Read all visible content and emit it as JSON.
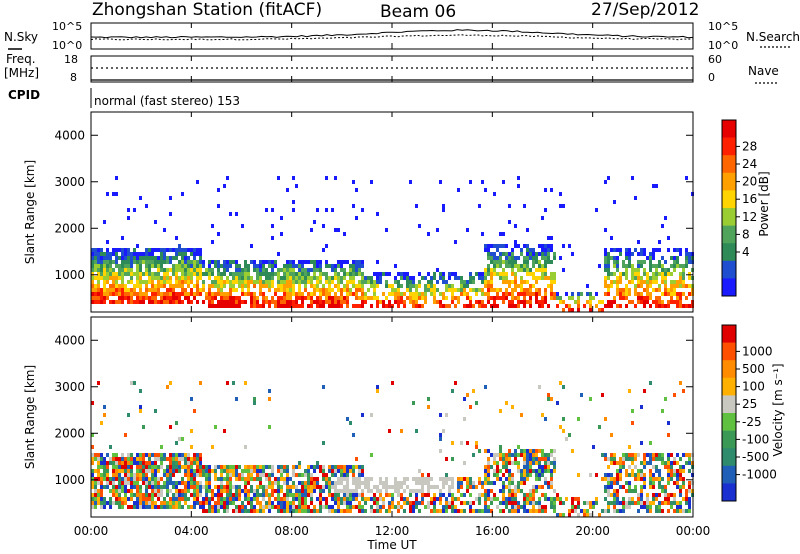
{
  "header": {
    "station_title": "Zhongshan Station (fitACF)",
    "beam_label": "Beam 06",
    "date_label": "27/Sep/2012"
  },
  "top_panels": {
    "nsky_label": "N.Sky",
    "nsearch_label": "N.Search",
    "nsky_ticks": [
      "10^5",
      "10^0"
    ],
    "nsky_right_ticks": [
      "10^5",
      "10^0"
    ],
    "freq_label": "Freq.",
    "freq_unit": "[MHz]",
    "freq_ticks": [
      "18",
      "8"
    ],
    "nave_label": "Nave",
    "nave_ticks": [
      "60",
      "0"
    ],
    "cpid_label": "CPID",
    "cpid_value": "normal (fast stereo) 153"
  },
  "chart_data": [
    {
      "type": "heatmap",
      "name": "power-panel",
      "ylabel": "Slant Range [km]",
      "y_ticks": [
        "4000",
        "3000",
        "2000",
        "1000"
      ],
      "ylim": [
        200,
        4500
      ],
      "colorbar_label": "Power [dB]",
      "colorbar_ticks": [
        "28",
        "24",
        "20",
        "16",
        "12",
        "8",
        "4"
      ],
      "colorbar_colors": [
        "#1a1aff",
        "#1f4fd0",
        "#2e8b57",
        "#4fa35a",
        "#9acd32",
        "#ffd400",
        "#ffa000",
        "#ff6600",
        "#ff2000",
        "#e60000"
      ],
      "grid": false
    },
    {
      "type": "heatmap",
      "name": "velocity-panel",
      "ylabel": "Slant Range [km]",
      "y_ticks": [
        "4000",
        "3000",
        "2000",
        "1000"
      ],
      "ylim": [
        200,
        4500
      ],
      "colorbar_label": "Velocity [m s⁻¹]",
      "colorbar_ticks": [
        "1000",
        "500",
        "100",
        "25",
        "-25",
        "-100",
        "-500",
        "-1000"
      ],
      "colorbar_colors": [
        "#1a2fd0",
        "#1f5fb8",
        "#2e8b6b",
        "#3a9a55",
        "#60c040",
        "#c8c8c0",
        "#ffb000",
        "#ff8c00",
        "#ff5000",
        "#e00000"
      ],
      "grid": false
    }
  ],
  "x_axis": {
    "xlabel": "Time UT",
    "ticks": [
      "00:00",
      "04:00",
      "08:00",
      "12:00",
      "16:00",
      "20:00",
      "00:00"
    ]
  }
}
